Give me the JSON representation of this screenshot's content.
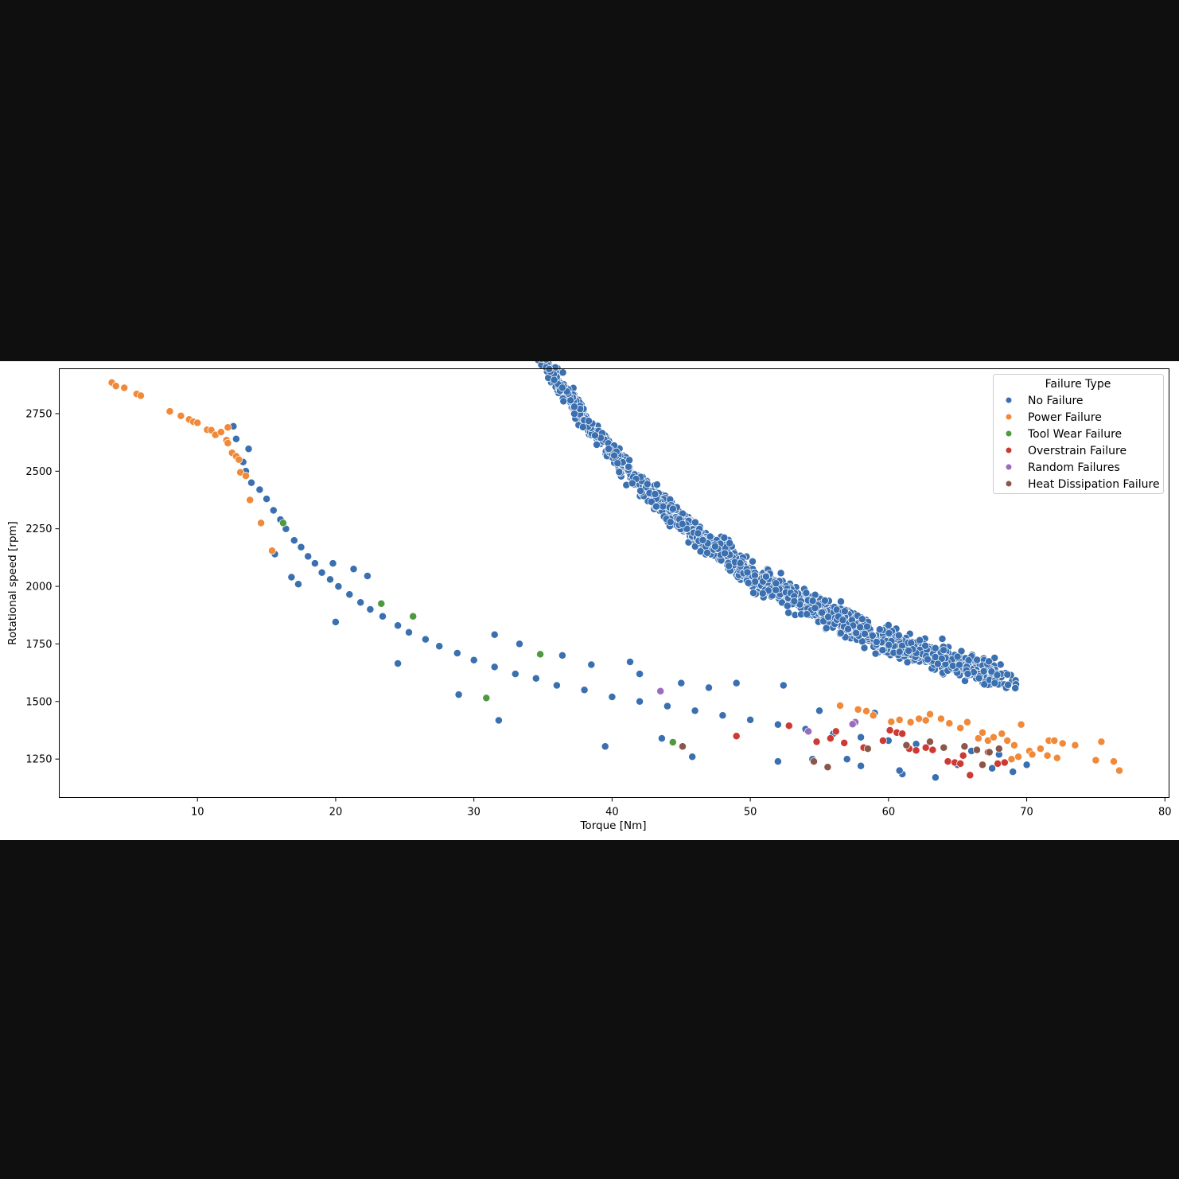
{
  "chart_data": {
    "type": "scatter",
    "xlabel": "Torque [Nm]",
    "ylabel": "Rotational speed [rpm]",
    "xlim": [
      0,
      80.3
    ],
    "ylim": [
      1083,
      2945
    ],
    "xticks": [
      10,
      20,
      30,
      40,
      50,
      60,
      70,
      80
    ],
    "yticks": [
      1250,
      1500,
      1750,
      2000,
      2250,
      2500,
      2750
    ],
    "grid": false,
    "legend": {
      "title": "Failure Type",
      "placement": "top-right",
      "entries": [
        "No Failure",
        "Power Failure",
        "Tool Wear Failure",
        "Overstrain Failure",
        "Random Failures",
        "Heat Dissipation Failure"
      ]
    },
    "colors": {
      "No Failure": "#3a6fb0",
      "Power Failure": "#f08a3a",
      "Tool Wear Failure": "#4f9a3e",
      "Overstrain Failure": "#cc3a33",
      "Random Failures": "#9a6bbf",
      "Heat Dissipation Failure": "#8a5748"
    },
    "series": [
      {
        "name": "No Failure",
        "trend": {
          "x_start": 12.5,
          "x_end": 70,
          "curve": "y = 1050 + 2.85e6 / (x + 3.2)^2 + 160"
        },
        "points": [
          [
            12.6,
            2695
          ],
          [
            12.8,
            2640
          ],
          [
            13.7,
            2597
          ],
          [
            13.3,
            2540
          ],
          [
            13.5,
            2500
          ],
          [
            13.9,
            2450
          ],
          [
            14.5,
            2420
          ],
          [
            15.0,
            2380
          ],
          [
            15.5,
            2330
          ],
          [
            16.0,
            2290
          ],
          [
            16.4,
            2250
          ],
          [
            17.0,
            2200
          ],
          [
            17.5,
            2170
          ],
          [
            18.0,
            2130
          ],
          [
            18.5,
            2100
          ],
          [
            19.0,
            2060
          ],
          [
            19.6,
            2030
          ],
          [
            20.2,
            2000
          ],
          [
            21.0,
            1965
          ],
          [
            21.8,
            1930
          ],
          [
            22.5,
            1900
          ],
          [
            23.4,
            1870
          ],
          [
            24.5,
            1830
          ],
          [
            25.3,
            1800
          ],
          [
            26.5,
            1770
          ],
          [
            27.5,
            1740
          ],
          [
            28.8,
            1710
          ],
          [
            30.0,
            1680
          ],
          [
            31.5,
            1650
          ],
          [
            33.0,
            1620
          ],
          [
            34.5,
            1600
          ],
          [
            36.0,
            1570
          ],
          [
            38.0,
            1550
          ],
          [
            40.0,
            1520
          ],
          [
            42.0,
            1500
          ],
          [
            44.0,
            1480
          ],
          [
            46.0,
            1460
          ],
          [
            48.0,
            1440
          ],
          [
            50.0,
            1420
          ],
          [
            52.0,
            1400
          ],
          [
            54.0,
            1380
          ],
          [
            56.0,
            1360
          ],
          [
            58.0,
            1345
          ],
          [
            60.0,
            1330
          ],
          [
            62.0,
            1315
          ],
          [
            64.0,
            1300
          ],
          [
            66.0,
            1285
          ],
          [
            68.0,
            1270
          ],
          [
            70.0,
            1225
          ],
          [
            63.4,
            1170
          ],
          [
            61.0,
            1185
          ],
          [
            41.3,
            1672
          ],
          [
            31.8,
            1418
          ],
          [
            39.5,
            1305
          ],
          [
            43.6,
            1340
          ],
          [
            45.8,
            1260
          ],
          [
            49.0,
            1580
          ],
          [
            52.4,
            1570
          ],
          [
            22.3,
            2045
          ],
          [
            21.3,
            2075
          ],
          [
            19.8,
            2100
          ],
          [
            17.3,
            2010
          ],
          [
            15.6,
            2140
          ],
          [
            24.5,
            1665
          ],
          [
            25.6,
            1870
          ],
          [
            16.8,
            2040
          ],
          [
            20.0,
            1845
          ],
          [
            28.9,
            1530
          ],
          [
            31.5,
            1790
          ],
          [
            33.3,
            1750
          ],
          [
            36.4,
            1700
          ],
          [
            52.0,
            1240
          ],
          [
            54.5,
            1250
          ],
          [
            58.0,
            1220
          ],
          [
            60.8,
            1200
          ],
          [
            65.0,
            1225
          ],
          [
            67.5,
            1210
          ],
          [
            69.0,
            1195
          ],
          [
            57.0,
            1250
          ],
          [
            59.0,
            1450
          ],
          [
            55.0,
            1460
          ],
          [
            47.0,
            1560
          ],
          [
            45.0,
            1580
          ],
          [
            42.0,
            1620
          ],
          [
            38.5,
            1660
          ]
        ]
      },
      {
        "name": "Power Failure",
        "points": [
          [
            3.8,
            2885
          ],
          [
            4.1,
            2870
          ],
          [
            4.7,
            2862
          ],
          [
            5.6,
            2835
          ],
          [
            5.9,
            2828
          ],
          [
            8.0,
            2760
          ],
          [
            8.8,
            2740
          ],
          [
            9.4,
            2725
          ],
          [
            9.7,
            2715
          ],
          [
            10.0,
            2710
          ],
          [
            10.7,
            2680
          ],
          [
            11.0,
            2678
          ],
          [
            11.3,
            2658
          ],
          [
            11.7,
            2670
          ],
          [
            12.2,
            2690
          ],
          [
            12.1,
            2635
          ],
          [
            12.2,
            2622
          ],
          [
            12.5,
            2580
          ],
          [
            12.8,
            2565
          ],
          [
            13.0,
            2550
          ],
          [
            13.1,
            2495
          ],
          [
            13.5,
            2480
          ],
          [
            13.8,
            2375
          ],
          [
            14.6,
            2275
          ],
          [
            15.4,
            2155
          ],
          [
            56.5,
            1482
          ],
          [
            57.8,
            1465
          ],
          [
            58.4,
            1458
          ],
          [
            58.9,
            1440
          ],
          [
            60.2,
            1412
          ],
          [
            60.8,
            1420
          ],
          [
            61.6,
            1410
          ],
          [
            62.2,
            1425
          ],
          [
            62.7,
            1418
          ],
          [
            63.0,
            1445
          ],
          [
            63.8,
            1425
          ],
          [
            64.4,
            1405
          ],
          [
            65.2,
            1385
          ],
          [
            65.7,
            1410
          ],
          [
            66.5,
            1340
          ],
          [
            66.8,
            1365
          ],
          [
            67.2,
            1330
          ],
          [
            67.6,
            1345
          ],
          [
            68.2,
            1360
          ],
          [
            68.6,
            1330
          ],
          [
            69.1,
            1310
          ],
          [
            69.6,
            1400
          ],
          [
            70.2,
            1285
          ],
          [
            71.0,
            1295
          ],
          [
            71.6,
            1330
          ],
          [
            72.0,
            1330
          ],
          [
            72.6,
            1318
          ],
          [
            73.5,
            1310
          ],
          [
            75.4,
            1325
          ],
          [
            75.0,
            1245
          ],
          [
            76.3,
            1240
          ],
          [
            76.7,
            1200
          ],
          [
            68.9,
            1250
          ],
          [
            69.4,
            1260
          ],
          [
            70.4,
            1270
          ],
          [
            71.5,
            1265
          ],
          [
            72.2,
            1255
          ]
        ]
      },
      {
        "name": "Tool Wear Failure",
        "points": [
          [
            16.2,
            2275
          ],
          [
            23.3,
            1925
          ],
          [
            25.6,
            1870
          ],
          [
            30.9,
            1515
          ],
          [
            44.4,
            1323
          ],
          [
            34.8,
            1705
          ]
        ]
      },
      {
        "name": "Overstrain Failure",
        "points": [
          [
            49.0,
            1350
          ],
          [
            52.8,
            1395
          ],
          [
            54.8,
            1325
          ],
          [
            55.8,
            1340
          ],
          [
            56.2,
            1370
          ],
          [
            59.6,
            1330
          ],
          [
            60.1,
            1375
          ],
          [
            60.6,
            1365
          ],
          [
            61.0,
            1360
          ],
          [
            61.5,
            1295
          ],
          [
            62.0,
            1288
          ],
          [
            62.7,
            1300
          ],
          [
            63.2,
            1290
          ],
          [
            64.3,
            1240
          ],
          [
            64.8,
            1235
          ],
          [
            65.2,
            1230
          ],
          [
            65.4,
            1265
          ],
          [
            65.9,
            1180
          ],
          [
            67.2,
            1280
          ],
          [
            67.9,
            1230
          ],
          [
            68.4,
            1235
          ],
          [
            56.8,
            1320
          ],
          [
            58.2,
            1300
          ]
        ]
      },
      {
        "name": "Random Failures",
        "points": [
          [
            43.5,
            1545
          ],
          [
            54.2,
            1370
          ],
          [
            57.6,
            1410
          ],
          [
            57.4,
            1402
          ]
        ]
      },
      {
        "name": "Heat Dissipation Failure",
        "points": [
          [
            45.1,
            1305
          ],
          [
            54.6,
            1240
          ],
          [
            55.6,
            1215
          ],
          [
            58.5,
            1295
          ],
          [
            61.3,
            1310
          ],
          [
            63.0,
            1325
          ],
          [
            65.5,
            1305
          ],
          [
            66.4,
            1290
          ],
          [
            66.8,
            1225
          ],
          [
            67.3,
            1280
          ],
          [
            64.0,
            1300
          ],
          [
            68.0,
            1295
          ]
        ]
      }
    ]
  }
}
